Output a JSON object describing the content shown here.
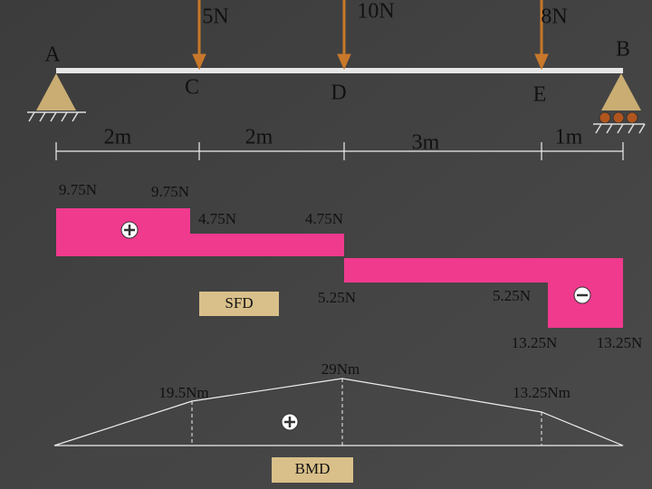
{
  "loads": [
    "5N",
    "10N",
    "8N"
  ],
  "points": [
    "A",
    "B",
    "C",
    "D",
    "E"
  ],
  "spans": [
    "2m",
    "2m",
    "3m",
    "1m"
  ],
  "sfd": {
    "title": "SFD",
    "labels": [
      "9.75N",
      "9.75N",
      "4.75N",
      "4.75N",
      "5.25N",
      "5.25N",
      "13.25N",
      "13.25N"
    ]
  },
  "bmd": {
    "title": "BMD",
    "labels": [
      "29Nm",
      "19.5Nm",
      "13.25Nm"
    ]
  }
}
